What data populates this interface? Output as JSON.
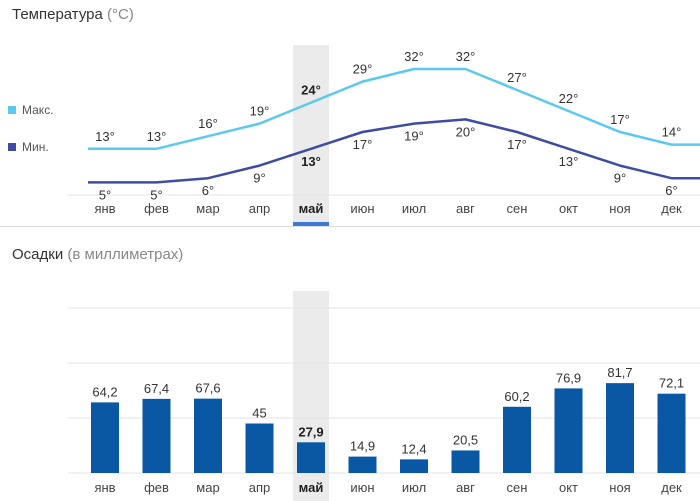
{
  "temperature": {
    "title": "Температура",
    "unit": "(°C)",
    "legend": {
      "max_label": "Макс.",
      "min_label": "Мин."
    },
    "colors": {
      "max": "#5bc8f0",
      "min": "#3f4da1"
    }
  },
  "precipitation": {
    "title": "Осадки",
    "unit": "(в миллиметрах)",
    "colors": {
      "bar": "#0a58a4"
    }
  },
  "selected_month_index": 4,
  "highlight_color": "#ebebeb",
  "accent_color": "#3a7bd5",
  "chart_data": [
    {
      "type": "line",
      "title": "Температура (°C)",
      "categories": [
        "янв",
        "фев",
        "мар",
        "апр",
        "май",
        "июн",
        "июл",
        "авг",
        "сен",
        "окт",
        "ноя",
        "дек"
      ],
      "series": [
        {
          "name": "Макс.",
          "values": [
            13,
            13,
            16,
            19,
            24,
            29,
            32,
            32,
            27,
            22,
            17,
            14
          ],
          "labels": [
            "13°",
            "13°",
            "16°",
            "19°",
            "24°",
            "29°",
            "32°",
            "32°",
            "27°",
            "22°",
            "17°",
            "14°"
          ]
        },
        {
          "name": "Мин.",
          "values": [
            5,
            5,
            6,
            9,
            13,
            17,
            19,
            20,
            17,
            13,
            9,
            6
          ],
          "labels": [
            "5°",
            "5°",
            "6°",
            "9°",
            "13°",
            "17°",
            "19°",
            "20°",
            "17°",
            "13°",
            "9°",
            "6°"
          ]
        }
      ],
      "grid": true,
      "legend": "left"
    },
    {
      "type": "bar",
      "title": "Осадки (в миллиметрах)",
      "categories": [
        "янв",
        "фев",
        "мар",
        "апр",
        "май",
        "июн",
        "июл",
        "авг",
        "сен",
        "окт",
        "ноя",
        "дек"
      ],
      "values": [
        64.2,
        67.4,
        67.6,
        45,
        27.9,
        14.9,
        12.4,
        20.5,
        60.2,
        76.9,
        81.7,
        72.1
      ],
      "labels": [
        "64,2",
        "67,4",
        "67,6",
        "45",
        "27,9",
        "14,9",
        "12,4",
        "20,5",
        "60,2",
        "76,9",
        "81,7",
        "72,1"
      ],
      "ylim": [
        0,
        300
      ],
      "grid": true
    }
  ]
}
